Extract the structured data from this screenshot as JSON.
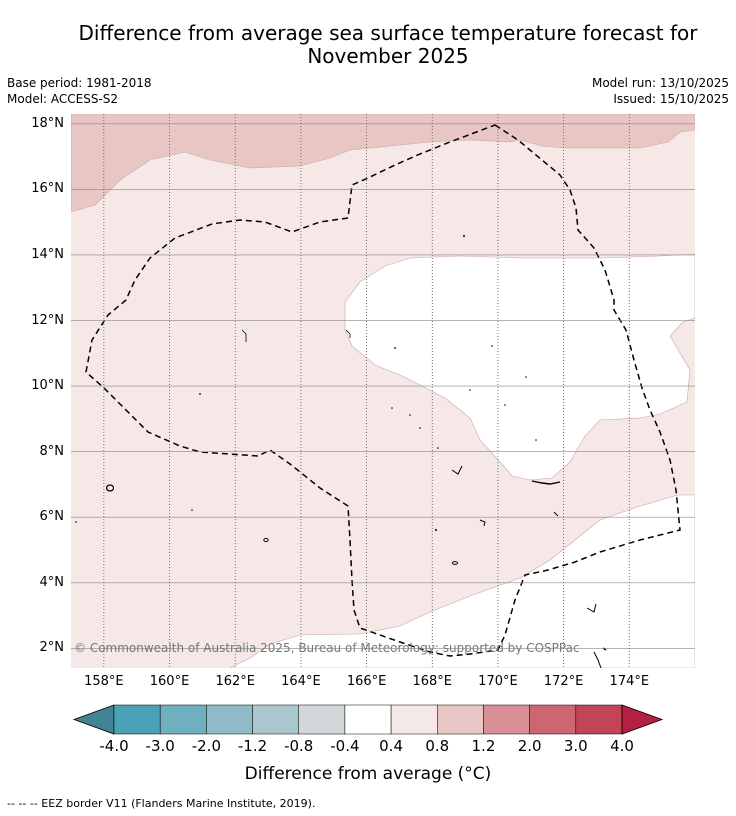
{
  "header": {
    "title_line1": "Difference from average sea surface temperature forecast for",
    "title_line2": "November 2025",
    "base_period": "Base period: 1981-2018",
    "model": "Model: ACCESS-S2",
    "model_run": "Model run: 13/10/2025",
    "issued": "Issued: 15/10/2025"
  },
  "map": {
    "lat_labels": [
      "18°N",
      "16°N",
      "14°N",
      "12°N",
      "10°N",
      "8°N",
      "6°N",
      "4°N",
      "2°N"
    ],
    "lon_labels": [
      "158°E",
      "160°E",
      "162°E",
      "164°E",
      "166°E",
      "168°E",
      "170°E",
      "172°E",
      "174°E"
    ],
    "copyright": "© Commonwealth of Australia 2025, Bureau of Meteorology; supported by COSPPac",
    "extent": {
      "lon_min": 157,
      "lon_max": 176,
      "lat_min": 1.4,
      "lat_max": 18.3
    },
    "colors": {
      "band_0_8_1_2": "#e8c6c3",
      "band_0_4_0_8": "#f5e8e7",
      "band_neutral": "#ffffff"
    }
  },
  "colorbar": {
    "labels": [
      "-4.0",
      "-3.0",
      "-2.0",
      "-1.2",
      "-0.8",
      "-0.4",
      "0.4",
      "0.8",
      "1.2",
      "2.0",
      "3.0",
      "4.0"
    ],
    "colors": [
      "#3f8595",
      "#49a2b5",
      "#6fb0c0",
      "#8fbac6",
      "#a9c7cc",
      "#d2d8da",
      "#ffffff",
      "#f5e8e7",
      "#e8c6c3",
      "#d88f95",
      "#cc6671",
      "#c14556",
      "#b32040"
    ],
    "title": "Difference from average (°C)"
  },
  "footnote": "--  --  -- EEZ border V11 (Flanders Marine Institute, 2019)."
}
